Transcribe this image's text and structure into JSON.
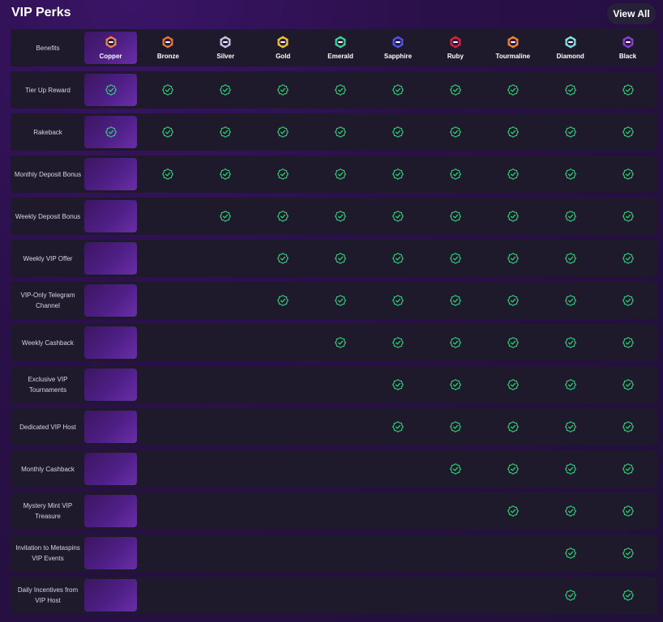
{
  "header": {
    "title": "VIP Perks",
    "view_all_label": "View All"
  },
  "table": {
    "benefits_label": "Benefits",
    "tiers": [
      {
        "name": "Copper",
        "color": "#e8844a",
        "icon": "copper-badge-icon"
      },
      {
        "name": "Bronze",
        "color": "#e07a2e",
        "icon": "bronze-badge-icon"
      },
      {
        "name": "Silver",
        "color": "#c9c3de",
        "icon": "silver-badge-icon"
      },
      {
        "name": "Gold",
        "color": "#f2c81f",
        "icon": "gold-badge-icon"
      },
      {
        "name": "Emerald",
        "color": "#3ed38c",
        "icon": "emerald-badge-icon"
      },
      {
        "name": "Sapphire",
        "color": "#4a56e8",
        "icon": "sapphire-badge-icon"
      },
      {
        "name": "Ruby",
        "color": "#d8243a",
        "icon": "ruby-badge-icon"
      },
      {
        "name": "Tourmaline",
        "color": "#f0862a",
        "icon": "tourmaline-badge-icon"
      },
      {
        "name": "Diamond",
        "color": "#7fe3d7",
        "icon": "diamond-badge-icon"
      },
      {
        "name": "Black",
        "color": "#8a3fd0",
        "icon": "black-badge-icon"
      }
    ],
    "rows": [
      {
        "label": "Tier Up Reward",
        "from": 0
      },
      {
        "label": "Rakeback",
        "from": 0
      },
      {
        "label": "Monthly Deposit Bonus",
        "from": 1
      },
      {
        "label": "Weekly Deposit Bonus",
        "from": 2
      },
      {
        "label": "Weekly VIP Offer",
        "from": 3
      },
      {
        "label": "VIP-Only Telegram Channel",
        "from": 3
      },
      {
        "label": "Weekly Cashback",
        "from": 4
      },
      {
        "label": "Exclusive VIP Tournaments",
        "from": 5
      },
      {
        "label": "Dedicated VIP Host",
        "from": 5
      },
      {
        "label": "Monthly Cashback",
        "from": 6
      },
      {
        "label": "Mystery Mint VIP Treasure",
        "from": 7
      },
      {
        "label": "Invitation to Metaspins VIP Events",
        "from": 8
      },
      {
        "label": "Daily Incentives from VIP Host",
        "from": 8
      }
    ],
    "check_color": "#2fd27a"
  }
}
